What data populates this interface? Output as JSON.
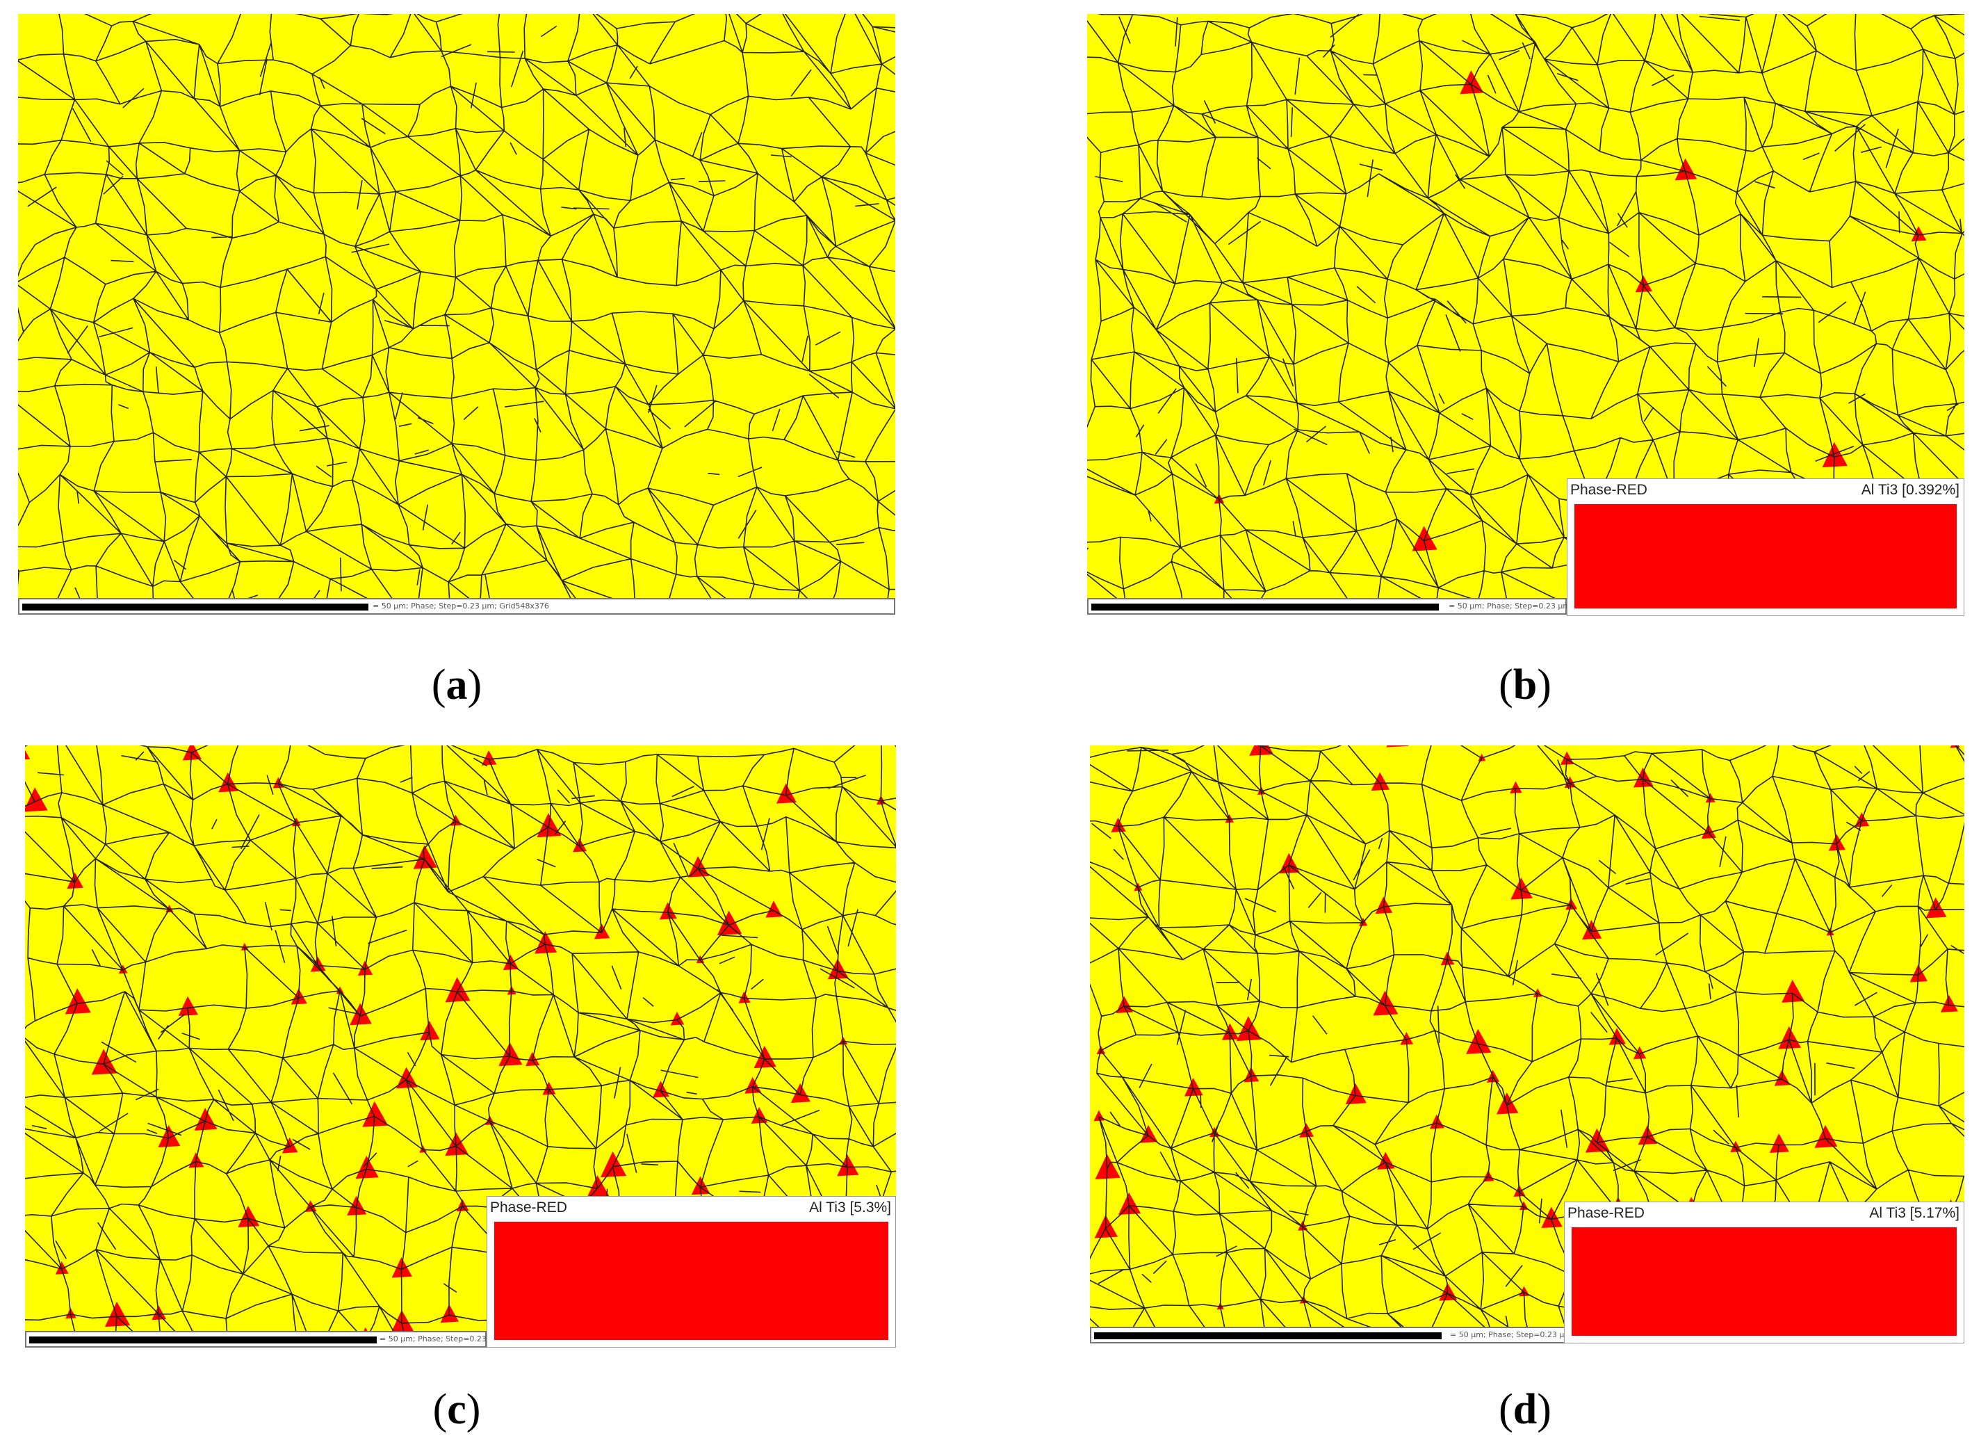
{
  "colors": {
    "matrix": "#ffff00",
    "precipitate": "#ff0000",
    "boundary": "#222222"
  },
  "panels": [
    {
      "id": "a",
      "caption_letter": "a",
      "scale_text": "= 50 µm; Phase; Step=0.23 µm; Grid548x376",
      "legend": null,
      "precipitate_fraction_pct": 0
    },
    {
      "id": "b",
      "caption_letter": "b",
      "scale_text": "= 50 µm; Phase; Step=0.23 µm;",
      "legend": {
        "name": "Phase-RED",
        "phase": "Al Ti3 [0.392%]"
      },
      "precipitate_fraction_pct": 0.392
    },
    {
      "id": "c",
      "caption_letter": "c",
      "scale_text": "= 50 µm; Phase; Step=0.23",
      "legend": {
        "name": "Phase-RED",
        "phase": "Al Ti3 [5.3%]"
      },
      "precipitate_fraction_pct": 5.3
    },
    {
      "id": "d",
      "caption_letter": "d",
      "scale_text": "= 50 µm; Phase; Step=0.23 µm;",
      "legend": {
        "name": "Phase-RED",
        "phase": "Al Ti3 [5.17%]"
      },
      "precipitate_fraction_pct": 5.17
    }
  ]
}
